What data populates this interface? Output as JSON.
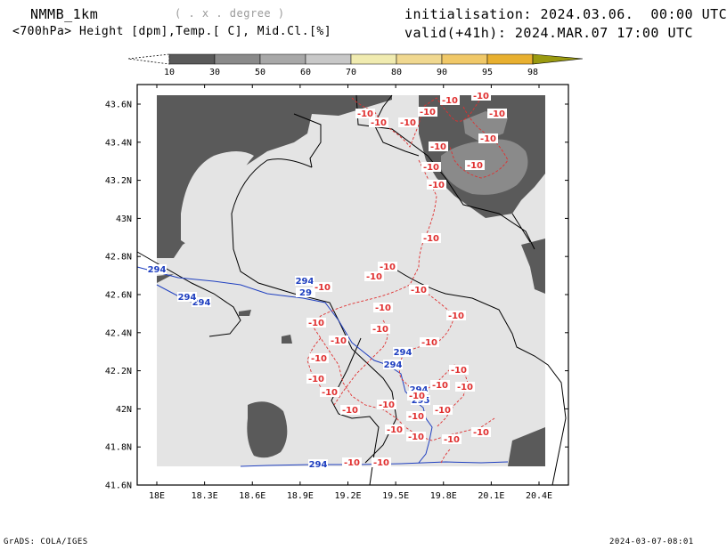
{
  "header": {
    "model": "NMMB_1km",
    "unit_note": "( . x . degree )",
    "fields": "<700hPa> Height [dpm],Temp.[ C], Mid.Cl.[%]",
    "init": "initialisation: 2024.03.06.  00:00 UTC",
    "valid": "valid(+41h): 2024.MAR.07 17:00 UTC"
  },
  "colorbar": {
    "labels": [
      "10",
      "30",
      "50",
      "60",
      "70",
      "80",
      "90",
      "95",
      "98"
    ],
    "colors": [
      "#5a5a5a",
      "#8a8a8a",
      "#a8a8a8",
      "#c8c8c8",
      "#f0ebb0",
      "#f0d890",
      "#f0c868",
      "#e8b030",
      "#9a9a10"
    ]
  },
  "axes": {
    "lat_labels": [
      "43.6N",
      "43.4N",
      "43.2N",
      "43N",
      "42.8N",
      "42.6N",
      "42.4N",
      "42.2N",
      "42N",
      "41.8N",
      "41.6N"
    ],
    "lon_labels": [
      "18E",
      "18.3E",
      "18.6E",
      "18.9E",
      "19.2E",
      "19.5E",
      "19.8E",
      "20.1E",
      "20.4E"
    ]
  },
  "contours": {
    "height_labels": [
      "294",
      "294",
      "294",
      "29",
      "294",
      "294",
      "294",
      "294",
      "295",
      "294"
    ],
    "temp_labels": [
      "-10",
      "-10",
      "-10",
      "-10",
      "-10",
      "-10",
      "-10",
      "-10",
      "-10",
      "-10",
      "-10",
      "-10",
      "-10",
      "-10",
      "-10",
      "-10",
      "-10",
      "-10",
      "-10",
      "-10",
      "-10",
      "-10",
      "-10",
      "-10",
      "-10",
      "-10",
      "-10",
      "-10",
      "-10",
      "-10",
      "-10",
      "-10",
      "-10",
      "-10",
      "-10",
      "-10",
      "-10",
      "-10",
      "-10",
      "-10"
    ]
  },
  "colors": {
    "height": "#2040c0",
    "temp": "#e03030",
    "cloud_dark": "#5a5a5a",
    "cloud_mid": "#8a8a8a",
    "background": "#e4e4e4"
  },
  "footer": {
    "left": "GrADS: COLA/IGES",
    "right": "2024-03-07-08:01"
  }
}
